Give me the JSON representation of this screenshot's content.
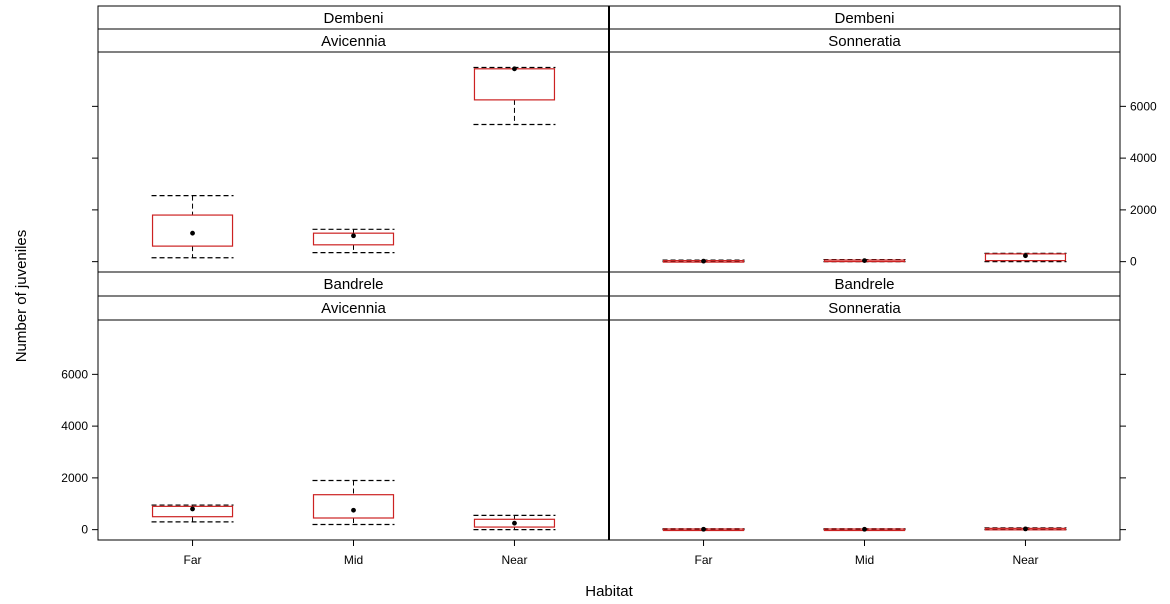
{
  "chart_data": {
    "type": "boxplot",
    "xlabel": "Habitat",
    "ylabel": "Number of juveniles",
    "categories": [
      "Far",
      "Mid",
      "Near"
    ],
    "y_ticks": [
      "0",
      "2000",
      "4000",
      "6000"
    ],
    "ylim": [
      -400,
      8100
    ],
    "panels": [
      {
        "site": "Dembeni",
        "species": "Avicennia",
        "boxes": [
          {
            "category": "Far",
            "whisker_low": 150,
            "q1": 600,
            "median": 1100,
            "q3": 1800,
            "whisker_high": 2550
          },
          {
            "category": "Mid",
            "whisker_low": 350,
            "q1": 650,
            "median": 1000,
            "q3": 1100,
            "whisker_high": 1250
          },
          {
            "category": "Near",
            "whisker_low": 5300,
            "q1": 6250,
            "median": 7450,
            "q3": 7450,
            "whisker_high": 7500
          }
        ]
      },
      {
        "site": "Dembeni",
        "species": "Sonneratia",
        "boxes": [
          {
            "category": "Far",
            "whisker_low": 0,
            "q1": 10,
            "median": 20,
            "q3": 40,
            "whisker_high": 60
          },
          {
            "category": "Mid",
            "whisker_low": 0,
            "q1": 10,
            "median": 40,
            "q3": 60,
            "whisker_high": 80
          },
          {
            "category": "Near",
            "whisker_low": 0,
            "q1": 40,
            "median": 230,
            "q3": 300,
            "whisker_high": 320
          }
        ]
      },
      {
        "site": "Bandrele",
        "species": "Avicennia",
        "boxes": [
          {
            "category": "Far",
            "whisker_low": 300,
            "q1": 500,
            "median": 800,
            "q3": 900,
            "whisker_high": 950
          },
          {
            "category": "Mid",
            "whisker_low": 200,
            "q1": 450,
            "median": 750,
            "q3": 1350,
            "whisker_high": 1900
          },
          {
            "category": "Near",
            "whisker_low": 0,
            "q1": 100,
            "median": 250,
            "q3": 400,
            "whisker_high": 550
          }
        ]
      },
      {
        "site": "Bandrele",
        "species": "Sonneratia",
        "boxes": [
          {
            "category": "Far",
            "whisker_low": 0,
            "q1": 5,
            "median": 15,
            "q3": 25,
            "whisker_high": 35
          },
          {
            "category": "Mid",
            "whisker_low": 0,
            "q1": 5,
            "median": 15,
            "q3": 25,
            "whisker_high": 35
          },
          {
            "category": "Near",
            "whisker_low": 0,
            "q1": 10,
            "median": 30,
            "q3": 50,
            "whisker_high": 70
          }
        ]
      }
    ],
    "colors": {
      "box": "#cc2222",
      "whisker": "#000000",
      "frame": "#000000",
      "strip_bg": "#ffffff"
    },
    "grid": false,
    "legend": "none"
  }
}
